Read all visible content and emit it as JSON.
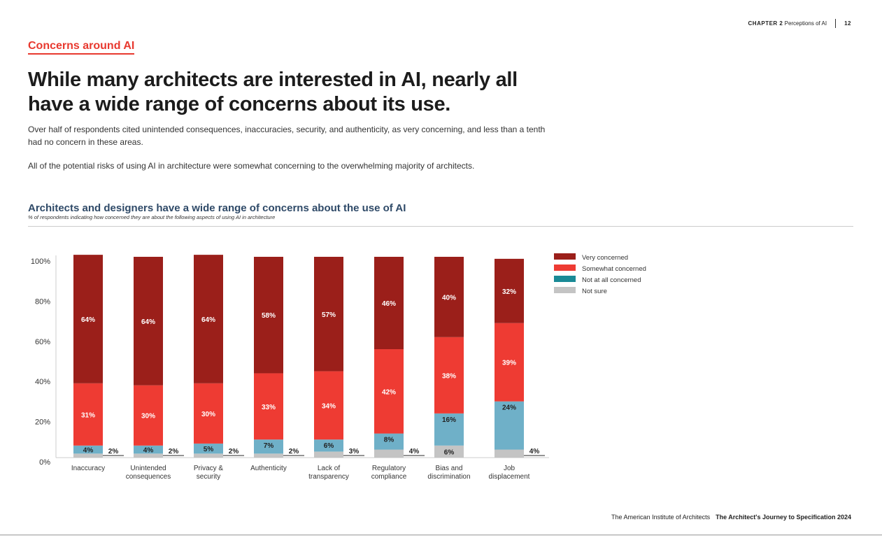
{
  "header": {
    "chapter": "CHAPTER 2",
    "chapter_title": "Perceptions of AI",
    "page": "12"
  },
  "section_label": "Concerns around AI",
  "headline": "While many architects are interested in AI, nearly all have a wide range of concerns about its use.",
  "paragraphs": [
    "Over half of respondents cited unintended consequences, inaccuracies, security, and authenticity, as very concerning, and less than a tenth had no concern in these areas.",
    "All of the potential risks of using AI in architecture were somewhat concerning to the overwhelming majority of architects."
  ],
  "footer": {
    "org": "The American Institute of Architects",
    "report": "The Architect's Journey to Specification 2024"
  },
  "chart_data": {
    "type": "bar",
    "stacked": true,
    "title": "Architects and designers have a wide range of concerns about the use of AI",
    "subtitle": "% of respondents indicating how concerned they are about the following aspects of using AI in architecture",
    "categories": [
      [
        "Inaccuracy"
      ],
      [
        "Unintended",
        "consequences"
      ],
      [
        "Privacy &",
        "security"
      ],
      [
        "Authenticity"
      ],
      [
        "Lack of",
        "transparency"
      ],
      [
        "Regulatory",
        "compliance"
      ],
      [
        "Bias and",
        "discrimination"
      ],
      [
        "Job",
        "displacement"
      ]
    ],
    "yticks": [
      "0%",
      "20%",
      "40%",
      "60%",
      "80%",
      "100%"
    ],
    "ylim": [
      0,
      100
    ],
    "legend_position": "right",
    "series": [
      {
        "name": "Not sure",
        "color": "#c4c4c4",
        "values": [
          2,
          2,
          2,
          2,
          3,
          4,
          6,
          4
        ]
      },
      {
        "name": "Not at all concerned",
        "color": "#6fb0c8",
        "legend_color": "#1a8a96",
        "values": [
          4,
          4,
          5,
          7,
          6,
          8,
          16,
          24
        ]
      },
      {
        "name": "Somewhat concerned",
        "color": "#ee3b33",
        "values": [
          31,
          30,
          30,
          33,
          34,
          42,
          38,
          39
        ]
      },
      {
        "name": "Very concerned",
        "color": "#9b1f1a",
        "values": [
          64,
          64,
          64,
          58,
          57,
          46,
          40,
          32
        ]
      }
    ],
    "legend_order": [
      "Very concerned",
      "Somewhat concerned",
      "Not at all concerned",
      "Not sure"
    ]
  }
}
